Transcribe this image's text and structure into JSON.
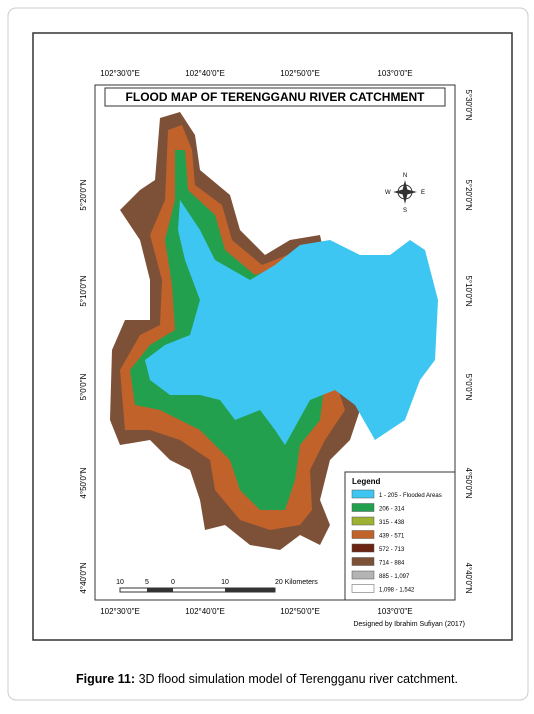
{
  "figure": {
    "title": "FLOOD MAP OF TERENGGANU RIVER CATCHMENT",
    "top_labels": [
      "102°30'0\"E",
      "102°40'0\"E",
      "102°50'0\"E",
      "103°0'0\"E"
    ],
    "bottom_labels": [
      "102°30'0\"E",
      "102°40'0\"E",
      "102°50'0\"E",
      "103°0'0\"E"
    ],
    "left_labels": [
      "5°20'0\"N",
      "5°10'0\"N",
      "5°0'0\"N",
      "4°50'0\"N",
      "4°40'0\"N"
    ],
    "right_labels": [
      "5°30'0\"N",
      "5°20'0\"N",
      "5°10'0\"N",
      "5°0'0\"N",
      "4°50'0\"N",
      "4°40'0\"N"
    ],
    "compass": {
      "n": "N",
      "s": "S",
      "e": "E",
      "w": "W"
    },
    "legend": {
      "title": "Legend",
      "items": [
        {
          "label": "1 - 205 - Flooded Areas",
          "color": "#3ec6f2"
        },
        {
          "label": "206 - 314",
          "color": "#23a04e"
        },
        {
          "label": "315 - 438",
          "color": "#9db133"
        },
        {
          "label": "439 - 571",
          "color": "#c0622a"
        },
        {
          "label": "572 - 713",
          "color": "#6b2312"
        },
        {
          "label": "714 - 884",
          "color": "#7d5038"
        },
        {
          "label": "885 - 1,097",
          "color": "#b4b4b4"
        },
        {
          "label": "1,098 - 1,542",
          "color": "#ffffff"
        }
      ]
    },
    "scale": {
      "ticks": [
        "10",
        "5",
        "0",
        "10",
        "20 Kilometers"
      ]
    },
    "credit": "Designed by Ibrahim Sufiyan (2017)"
  },
  "caption": {
    "label": "Figure 11:",
    "text": " 3D flood simulation model of Terengganu river catchment."
  }
}
